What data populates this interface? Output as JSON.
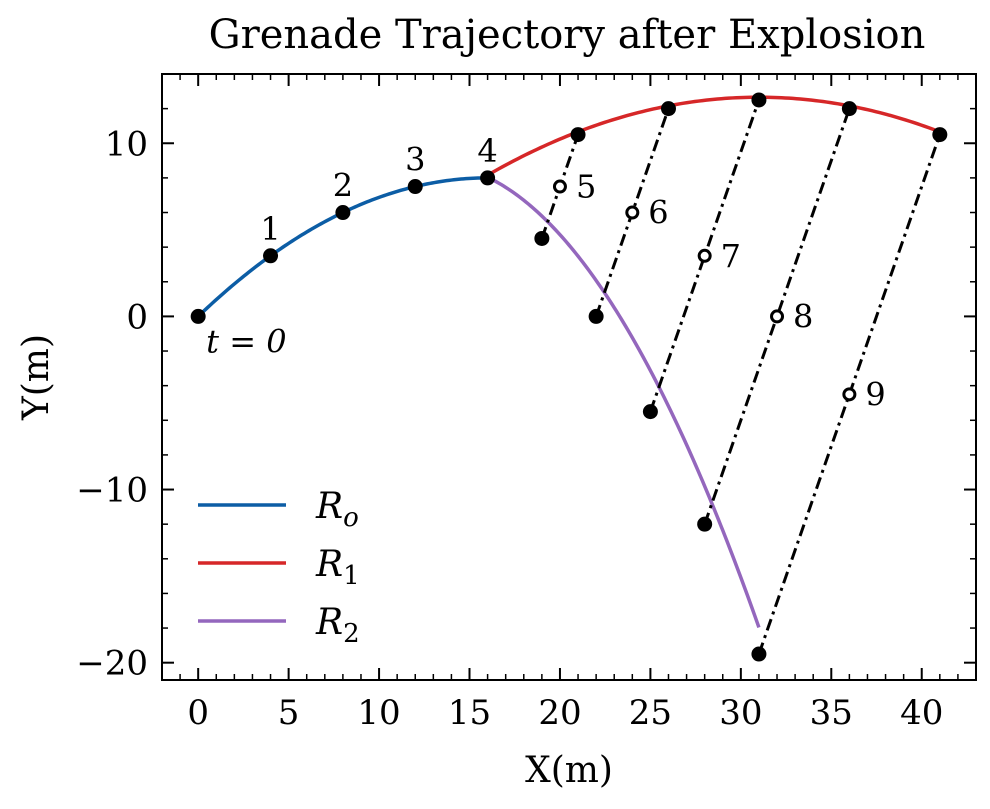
{
  "chart_data": {
    "type": "line",
    "title": "Grenade Trajectory after Explosion",
    "xlabel": "X(m)",
    "ylabel": "Y(m)",
    "xlim": [
      -2,
      43
    ],
    "ylim": [
      -21,
      14
    ],
    "x_ticks": [
      0,
      5,
      10,
      15,
      20,
      25,
      30,
      35,
      40
    ],
    "y_ticks": [
      -20,
      -10,
      0,
      10
    ],
    "x_tick_labels": [
      "0",
      "5",
      "10",
      "15",
      "20",
      "25",
      "30",
      "35",
      "40"
    ],
    "y_tick_labels": [
      "−20",
      "−10",
      "0",
      "10"
    ],
    "grid": false,
    "legend_position": "lower-left",
    "series": [
      {
        "name": "R_o",
        "legend_label": "Ro",
        "color": "#0C5DA5",
        "curve": {
          "x_start": 0,
          "x_end": 16,
          "coeffs": {
            "a": -0.03125,
            "b": 1.0,
            "c": 0
          }
        },
        "points": [
          {
            "x": 0,
            "y": 0
          },
          {
            "x": 4,
            "y": 3.5
          },
          {
            "x": 8,
            "y": 6
          },
          {
            "x": 12,
            "y": 7.5
          },
          {
            "x": 16,
            "y": 8
          }
        ]
      },
      {
        "name": "R_1",
        "legend_label": "R1",
        "color": "#D62728",
        "curve": {
          "x_start": 16,
          "x_end": 41,
          "coeffs": {
            "a": -0.02,
            "b": 1.24,
            "c": -6.56
          }
        },
        "points": [
          {
            "x": 21,
            "y": 10.5
          },
          {
            "x": 26,
            "y": 12
          },
          {
            "x": 31,
            "y": 12.5
          },
          {
            "x": 36,
            "y": 12
          },
          {
            "x": 41,
            "y": 10.5
          }
        ]
      },
      {
        "name": "R_2",
        "legend_label": "R2",
        "color": "#9467BD",
        "curve": {
          "x_start": 16,
          "x_end": 31,
          "coeffs": {
            "a": -0.0822,
            "b": 2.13,
            "c": -5.0
          }
        },
        "points": [
          {
            "x": 19,
            "y": 4.5
          },
          {
            "x": 22,
            "y": 0
          },
          {
            "x": 25,
            "y": -5.5
          },
          {
            "x": 28,
            "y": -12
          },
          {
            "x": 31,
            "y": -19.5
          }
        ]
      }
    ],
    "center_of_mass": {
      "points": [
        {
          "label": "5",
          "x": 20,
          "y": 7.5
        },
        {
          "label": "6",
          "x": 24,
          "y": 6
        },
        {
          "label": "7",
          "x": 28,
          "y": 3.5
        },
        {
          "label": "8",
          "x": 32,
          "y": 0
        },
        {
          "label": "9",
          "x": 36,
          "y": -4.5
        }
      ]
    },
    "connectors": [
      {
        "from": {
          "x": 19,
          "y": 4.5
        },
        "to": {
          "x": 21,
          "y": 10.5
        }
      },
      {
        "from": {
          "x": 22,
          "y": 0
        },
        "to": {
          "x": 26,
          "y": 12
        }
      },
      {
        "from": {
          "x": 25,
          "y": -5.5
        },
        "to": {
          "x": 31,
          "y": 12.5
        }
      },
      {
        "from": {
          "x": 28,
          "y": -12
        },
        "to": {
          "x": 36,
          "y": 12
        }
      },
      {
        "from": {
          "x": 31,
          "y": -19.5
        },
        "to": {
          "x": 41,
          "y": 10.5
        }
      }
    ],
    "time_labels": [
      {
        "text": "1",
        "x": 4,
        "y": 3.5
      },
      {
        "text": "2",
        "x": 8,
        "y": 6
      },
      {
        "text": "3",
        "x": 12,
        "y": 7.5
      },
      {
        "text": "4",
        "x": 16,
        "y": 8
      }
    ],
    "annotation_t0": {
      "text": "t = 0",
      "x": 0,
      "y": 0
    }
  }
}
